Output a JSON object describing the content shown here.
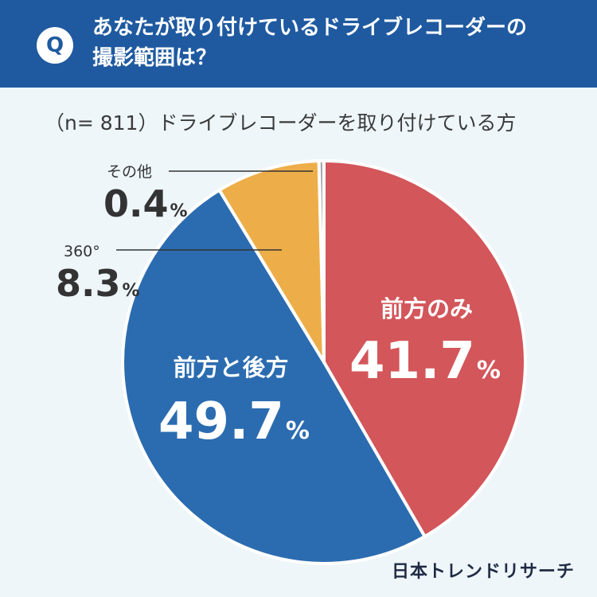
{
  "header": {
    "badge": "Q",
    "question_line1": "あなたが取り付けているドライブレコーダーの",
    "question_line2": "撮影範囲は？"
  },
  "subtitle": "（n= 811）ドライブレコーダーを取り付けている方",
  "credit": "日本トレンドリサーチ",
  "chart_data": {
    "type": "pie",
    "title": "",
    "slices": [
      {
        "label": "前方のみ",
        "value": 41.7,
        "display": "41.7",
        "color": "#d3565a"
      },
      {
        "label": "前方と後方",
        "value": 49.7,
        "display": "49.7",
        "color": "#2b6cb0"
      },
      {
        "label": "360°",
        "value": 8.3,
        "display": "8.3",
        "color": "#edae49"
      },
      {
        "label": "その他",
        "value": 0.4,
        "display": "0.4",
        "color": "#a3a7ad"
      }
    ],
    "unit": "%",
    "legend": "none"
  }
}
